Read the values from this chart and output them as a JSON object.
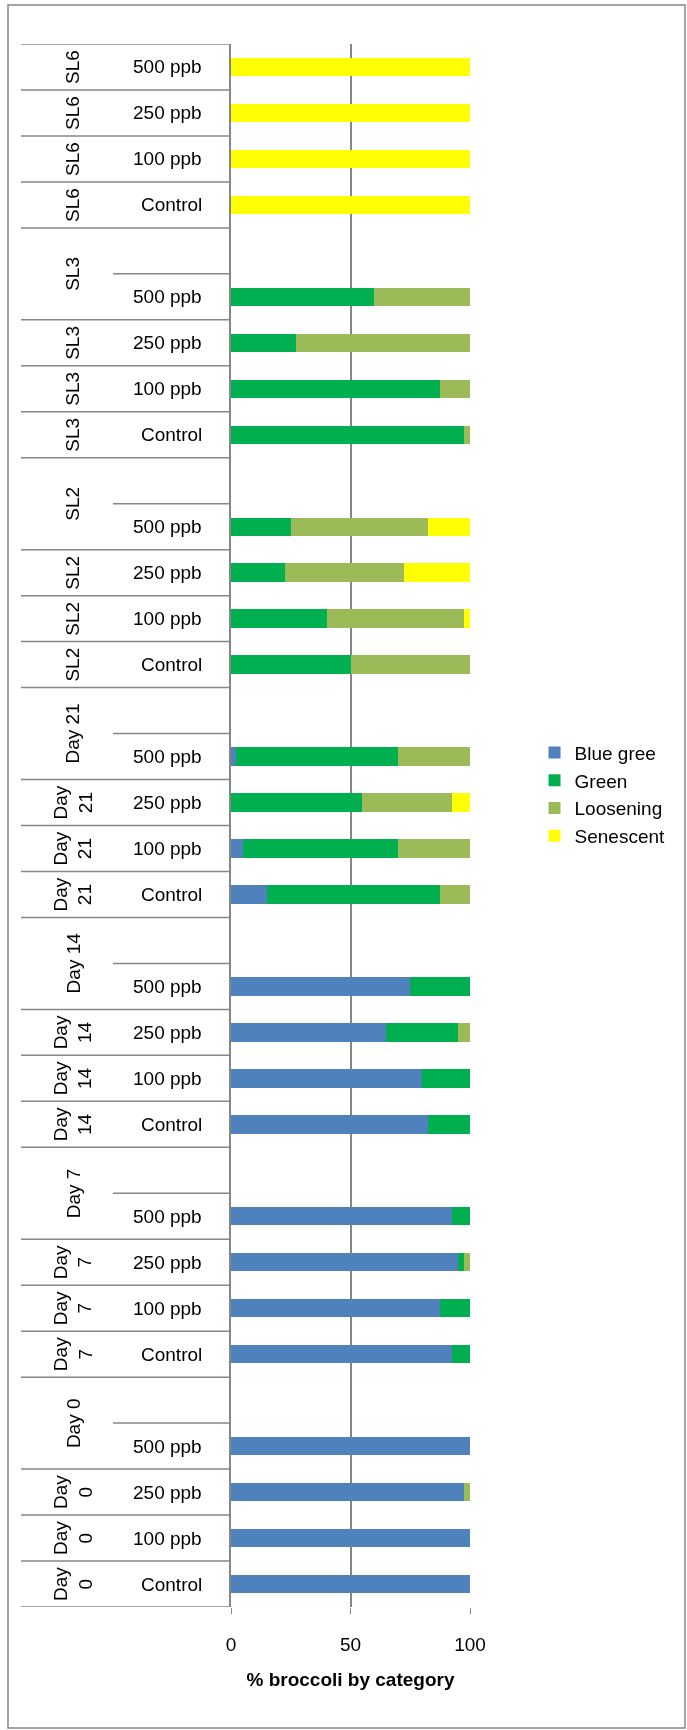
{
  "chart_data": {
    "type": "bar",
    "orientation": "horizontal",
    "stacked": true,
    "xlabel": "% broccoli by category",
    "categories": [
      "SL6\n500 ppb",
      "SL6\n250 ppb",
      "SL6\n100 ppb",
      "SL6\nControl",
      null,
      "SL3\n500 ppb",
      "SL3\n250 ppb",
      "SL3\n100 ppb",
      "SL3\nControl",
      null,
      "SL2\n500 ppb",
      "SL2\n250 ppb",
      "SL2\n100 ppb",
      "SL2\nControl",
      null,
      "Day 21\n500 ppb",
      "Day 21\n250 ppb",
      "Day 21\n100 ppb",
      "Day 21\nControl",
      null,
      "Day 14\n500 ppb",
      "Day 14\n250 ppb",
      "Day 14\n100 ppb",
      "Day 14\nControl",
      null,
      "Day 7\n500 ppb",
      "Day 7\n250 ppb",
      "Day 7\n100 ppb",
      "Day 7\nControl",
      null,
      "Day 0\n500 ppb",
      "Day 0\n250 ppb",
      "Day 0\n100 ppb",
      "Day 0\nControl"
    ],
    "series": [
      {
        "name": "Blue gree",
        "color": "#4f81bd",
        "values": [
          0,
          0,
          0,
          0,
          null,
          0,
          0,
          0,
          0,
          null,
          0,
          0,
          0,
          0,
          null,
          2,
          0,
          5,
          15,
          null,
          75,
          65,
          80,
          82.5,
          null,
          92.5,
          95,
          87.5,
          92.5,
          null,
          100,
          97.5,
          100,
          100
        ]
      },
      {
        "name": "Green",
        "color": "#00b050",
        "values": [
          0,
          0,
          0,
          0,
          null,
          60,
          27,
          87.5,
          97.5,
          null,
          25,
          22.5,
          40,
          50,
          null,
          68,
          55,
          65,
          72.5,
          null,
          25,
          30,
          20,
          17.5,
          null,
          7.5,
          2.5,
          12.5,
          7.5,
          null,
          0,
          0,
          0,
          0
        ]
      },
      {
        "name": "Loosening",
        "color": "#9bbb59",
        "values": [
          0,
          0,
          0,
          0,
          null,
          40,
          73,
          12.5,
          2.5,
          null,
          57.5,
          50,
          57.5,
          50,
          null,
          30,
          37.5,
          30,
          12.5,
          null,
          0,
          5,
          0,
          0,
          null,
          0,
          2.5,
          0,
          0,
          null,
          0,
          2.5,
          0,
          0
        ]
      },
      {
        "name": "Senescent",
        "color": "#ffff00",
        "values": [
          100,
          100,
          100,
          100,
          null,
          0,
          0,
          0,
          0,
          null,
          17.5,
          27.5,
          2.5,
          0,
          null,
          0,
          7.5,
          0,
          0,
          null,
          0,
          0,
          0,
          0,
          null,
          0,
          0,
          0,
          0,
          null,
          0,
          0,
          0,
          0
        ]
      }
    ],
    "xlim": [
      0,
      100
    ],
    "xticks": [
      0,
      50,
      100
    ],
    "grid": "x",
    "legend": "right"
  }
}
